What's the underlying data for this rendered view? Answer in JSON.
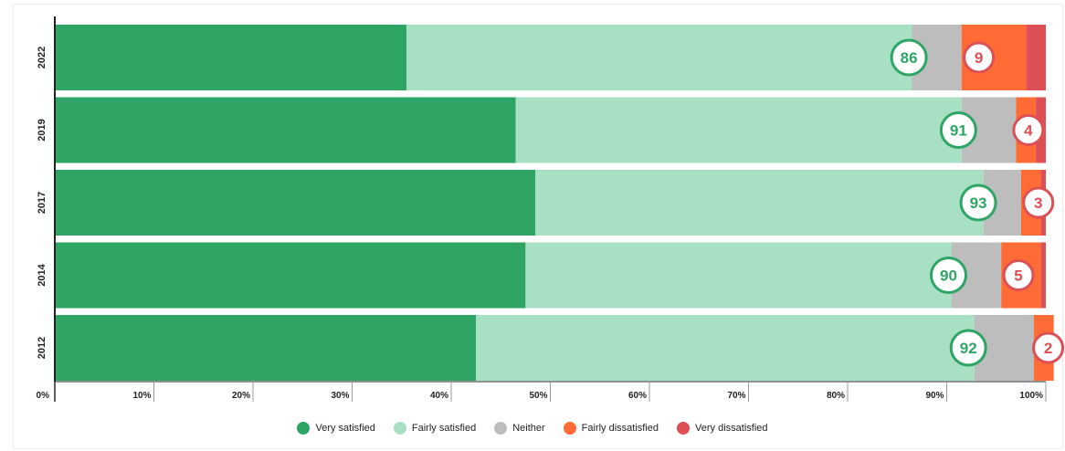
{
  "chart_data": {
    "type": "bar",
    "orientation": "horizontal",
    "stacked": true,
    "categories": [
      "2022",
      "2019",
      "2017",
      "2014",
      "2012"
    ],
    "series": [
      {
        "name": "Very satisfied",
        "color": "#2ea565",
        "values": [
          35.5,
          46.5,
          48.5,
          47.5,
          42.5
        ]
      },
      {
        "name": "Fairly satisfied",
        "color": "#a8e0c4",
        "values": [
          51,
          45,
          45.2,
          43,
          50.3
        ]
      },
      {
        "name": "Neither",
        "color": "#bdbdbd",
        "values": [
          5,
          5.5,
          3.8,
          5,
          6
        ]
      },
      {
        "name": "Fairly dissatisfied",
        "color": "#ff6b35",
        "values": [
          6.5,
          2,
          2,
          4,
          2
        ]
      },
      {
        "name": "Very dissatisfied",
        "color": "#dc4f55",
        "values": [
          2,
          1,
          0.5,
          0.5,
          0
        ]
      }
    ],
    "annotations": {
      "satisfied_total": [
        86,
        91,
        93,
        90,
        92
      ],
      "dissatisfied_total": [
        9,
        4,
        3,
        5,
        2
      ],
      "satisfied_color": "#2ea565",
      "dissatisfied_color": "#dc4f55"
    },
    "x_ticks": [
      "0%",
      "10%",
      "20%",
      "30%",
      "40%",
      "50%",
      "60%",
      "70%",
      "80%",
      "90%",
      "100%"
    ],
    "xlim": [
      0,
      100
    ],
    "grid": false,
    "legend_position": "bottom-center"
  }
}
